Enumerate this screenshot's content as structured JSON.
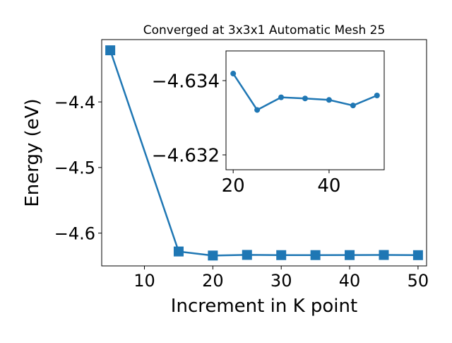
{
  "chart_data": [
    {
      "type": "line",
      "title": "Converged at 3x3x1 Automatic Mesh 25",
      "xlabel": "Increment in K point",
      "ylabel": "Energy (eV)",
      "xlim": [
        3.75,
        51.25
      ],
      "ylim": [
        -4.65,
        -4.305
      ],
      "xticks": [
        10,
        20,
        30,
        40,
        50
      ],
      "yticks": [
        -4.4,
        -4.5,
        -4.6
      ],
      "ytick_labels": [
        "−4.4",
        "−4.5",
        "−4.6"
      ],
      "marker": "square",
      "color": "#1f77b4",
      "grid": false,
      "x": [
        5,
        15,
        20,
        25,
        30,
        35,
        40,
        45,
        50
      ],
      "y": [
        -4.3213,
        -4.628,
        -4.63419,
        -4.63321,
        -4.63355,
        -4.63352,
        -4.63348,
        -4.63333,
        -4.6336
      ]
    },
    {
      "type": "line",
      "inset": true,
      "title": "",
      "xlim": [
        18.5,
        51.5
      ],
      "ylim": [
        -4.6348,
        -4.6316
      ],
      "y_inverted": true,
      "xticks": [
        20,
        40
      ],
      "yticks": [
        -4.634,
        -4.632
      ],
      "ytick_labels": [
        "−4.634",
        "−4.632"
      ],
      "marker": "circle",
      "color": "#1f77b4",
      "grid": false,
      "x": [
        20,
        25,
        30,
        35,
        40,
        45,
        50
      ],
      "y": [
        -4.63419,
        -4.63321,
        -4.63355,
        -4.63352,
        -4.63348,
        -4.63333,
        -4.6336
      ]
    }
  ]
}
